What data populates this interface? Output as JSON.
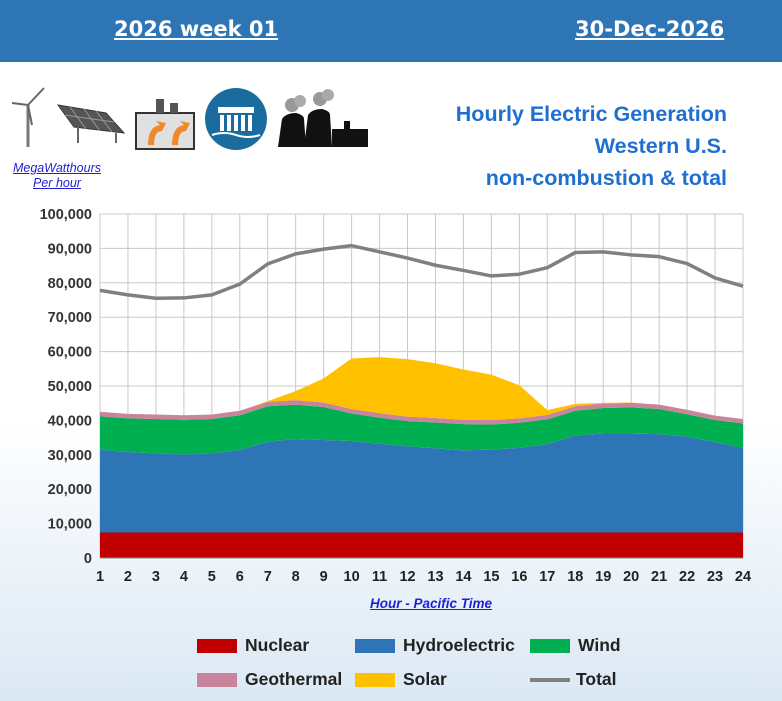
{
  "header": {
    "week": "2026 week 01",
    "date": "30-Dec-2026"
  },
  "title_lines": [
    "Hourly Electric Generation",
    "Western U.S.",
    "non-combustion & total"
  ],
  "unit_label": [
    "MegaWatthours",
    "Per hour"
  ],
  "icons": [
    "wind-turbine-icon",
    "solar-panel-icon",
    "geothermal-plant-icon",
    "hydro-dam-icon",
    "nuclear-plant-icon"
  ],
  "colors": {
    "banner": "#2e75b6",
    "nuclear": "#c00000",
    "hydroelectric": "#2e75b6",
    "wind": "#00b050",
    "geothermal": "#c9849b",
    "solar": "#ffc000",
    "total": "#808080"
  },
  "chart_data": {
    "type": "area",
    "stacked": true,
    "x": [
      1,
      2,
      3,
      4,
      5,
      6,
      7,
      8,
      9,
      10,
      11,
      12,
      13,
      14,
      15,
      16,
      17,
      18,
      19,
      20,
      21,
      22,
      23,
      24
    ],
    "xlabel": "Hour - Pacific Time",
    "ylim": [
      0,
      100000
    ],
    "yticks": [
      "0",
      "10,000",
      "20,000",
      "30,000",
      "40,000",
      "50,000",
      "60,000",
      "70,000",
      "80,000",
      "90,000",
      "100,000"
    ],
    "grid": true,
    "legend_position": "bottom",
    "series": [
      {
        "name": "Nuclear",
        "values": [
          7400,
          7400,
          7400,
          7400,
          7400,
          7400,
          7400,
          7400,
          7400,
          7400,
          7400,
          7400,
          7400,
          7400,
          7400,
          7400,
          7400,
          7400,
          7400,
          7400,
          7400,
          7400,
          7400,
          7400
        ]
      },
      {
        "name": "Hydroelectric",
        "values": [
          24100,
          23400,
          23000,
          22700,
          23000,
          24000,
          26400,
          27200,
          26900,
          26600,
          25800,
          25100,
          24500,
          23900,
          24100,
          24600,
          25700,
          28200,
          28800,
          28800,
          28600,
          27900,
          26300,
          24600
        ]
      },
      {
        "name": "Wind",
        "values": [
          9700,
          9800,
          10000,
          10100,
          10000,
          10100,
          10300,
          10000,
          9600,
          8000,
          7600,
          7300,
          7500,
          7600,
          7300,
          7300,
          7200,
          7200,
          7400,
          7600,
          7300,
          6500,
          6400,
          7100
        ]
      },
      {
        "name": "Geothermal",
        "values": [
          1300,
          1300,
          1300,
          1300,
          1300,
          1300,
          1300,
          1300,
          1300,
          1300,
          1300,
          1300,
          1300,
          1300,
          1300,
          1300,
          1300,
          1300,
          1300,
          1300,
          1300,
          1300,
          1300,
          1300
        ]
      },
      {
        "name": "Solar",
        "values": [
          0,
          0,
          0,
          0,
          0,
          0,
          200,
          2600,
          7000,
          14700,
          16300,
          16700,
          15900,
          14600,
          13200,
          9600,
          1400,
          700,
          200,
          100,
          0,
          0,
          0,
          0
        ]
      }
    ],
    "total": {
      "name": "Total",
      "values": [
        77800,
        76500,
        75500,
        75600,
        76500,
        79600,
        85500,
        88400,
        89800,
        90800,
        89000,
        87200,
        85100,
        83600,
        82000,
        82500,
        84400,
        88800,
        89000,
        88100,
        87600,
        85600,
        81400,
        79000
      ]
    }
  }
}
